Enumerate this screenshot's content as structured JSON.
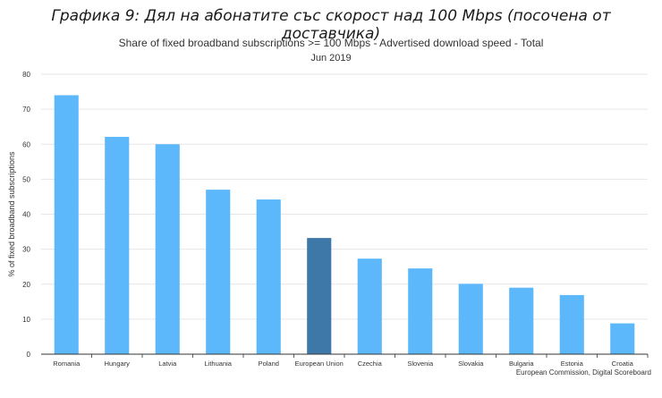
{
  "figure_caption": "Графика 9: Дял на абонатите със скорост над 100 Mbps (посочена от доставчика)",
  "source": "European Commission, Digital Scoreboard",
  "colors": {
    "bar": "#5cb8fb",
    "bar_highlight": "#3d78a8",
    "grid": "#e6e6e6",
    "axis": "#333333"
  },
  "chart_data": {
    "type": "bar",
    "title": "Share of fixed broadband subscriptions >= 100 Mbps - Advertised download speed - Total",
    "subtitle": "Jun 2019",
    "xlabel": "",
    "ylabel": "% of fixed broadband subscriptions",
    "ylim": [
      0,
      80
    ],
    "yticks": [
      0,
      10,
      20,
      30,
      40,
      50,
      60,
      70,
      80
    ],
    "grid": true,
    "legend": "none",
    "highlight_category": "European Union",
    "categories": [
      "Romania",
      "Hungary",
      "Latvia",
      "Lithuania",
      "Poland",
      "European Union",
      "Czechia",
      "Slovenia",
      "Slovakia",
      "Bulgaria",
      "Estonia",
      "Croatia"
    ],
    "values": [
      74,
      62.1,
      60,
      47,
      44.2,
      33.2,
      27.3,
      24.5,
      20.1,
      19,
      16.9,
      8.8
    ]
  }
}
